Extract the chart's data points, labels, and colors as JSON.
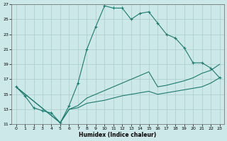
{
  "xlabel": "Humidex (Indice chaleur)",
  "bg_color": "#cce8e8",
  "grid_color": "#aacccc",
  "line_color": "#1a7a6e",
  "xlim": [
    -0.5,
    23.5
  ],
  "ylim": [
    11,
    27
  ],
  "xticks": [
    0,
    1,
    2,
    3,
    4,
    5,
    6,
    7,
    8,
    9,
    10,
    11,
    12,
    13,
    14,
    15,
    16,
    17,
    18,
    19,
    20,
    21,
    22,
    23
  ],
  "yticks": [
    11,
    13,
    15,
    17,
    19,
    21,
    23,
    25,
    27
  ],
  "line1_x": [
    0,
    1,
    2,
    3,
    4,
    5,
    6,
    7,
    8,
    9,
    10,
    11,
    12,
    13,
    14,
    15,
    16,
    17,
    18,
    19,
    20,
    21,
    22,
    23
  ],
  "line1_y": [
    16.0,
    14.8,
    13.2,
    12.8,
    12.5,
    11.2,
    13.5,
    16.5,
    21.0,
    24.0,
    26.8,
    26.5,
    26.5,
    25.0,
    25.8,
    26.0,
    24.5,
    23.0,
    22.5,
    21.2,
    19.2,
    19.2,
    18.5,
    17.2
  ],
  "line2_x": [
    0,
    5,
    6,
    7,
    8,
    9,
    10,
    11,
    12,
    13,
    14,
    15,
    16,
    17,
    18,
    19,
    20,
    21,
    22,
    23
  ],
  "line2_y": [
    16.0,
    11.2,
    13.0,
    13.5,
    14.5,
    15.0,
    15.5,
    16.0,
    16.5,
    17.0,
    17.5,
    18.0,
    16.0,
    16.2,
    16.5,
    16.8,
    17.2,
    17.8,
    18.2,
    19.0
  ],
  "line3_x": [
    0,
    5,
    6,
    7,
    8,
    9,
    10,
    11,
    12,
    13,
    14,
    15,
    16,
    17,
    18,
    19,
    20,
    21,
    22,
    23
  ],
  "line3_y": [
    16.0,
    11.2,
    13.0,
    13.2,
    13.8,
    14.0,
    14.2,
    14.5,
    14.8,
    15.0,
    15.2,
    15.4,
    15.0,
    15.2,
    15.4,
    15.6,
    15.8,
    16.0,
    16.5,
    17.2
  ]
}
